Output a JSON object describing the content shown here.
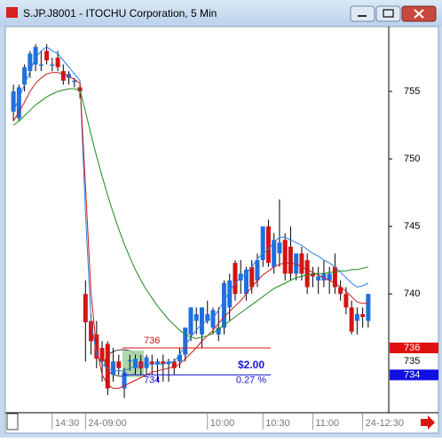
{
  "window": {
    "title": "S.JP.J8001 - ITOCHU Corporation, 5 Min"
  },
  "chart_data": {
    "type": "candlestick",
    "up_color": "#1f6fe0",
    "down_color": "#d41414",
    "categories": [
      null,
      null,
      null,
      null,
      null,
      null,
      null,
      "14:30",
      null,
      null,
      null,
      null,
      null,
      "24-09:00",
      null,
      null,
      null,
      null,
      null,
      null,
      null,
      null,
      null,
      null,
      null,
      null,
      null,
      null,
      null,
      null,
      null,
      null,
      null,
      null,
      null,
      "10:00",
      null,
      null,
      null,
      null,
      null,
      null,
      null,
      null,
      null,
      "10:30",
      null,
      null,
      null,
      null,
      null,
      null,
      null,
      null,
      "11:00",
      null,
      null,
      null,
      null,
      null,
      null,
      null,
      null,
      "24-12:30",
      null
    ],
    "open": [
      753.5,
      753,
      755.5,
      756.5,
      757,
      757,
      758,
      757,
      757.5,
      756.5,
      756,
      755.8,
      755.3,
      740,
      738,
      737,
      736,
      736.3,
      734,
      735,
      733,
      735,
      734.5,
      735,
      734.5,
      735,
      734.8,
      735,
      734.8,
      735,
      735,
      735.5,
      737,
      738,
      737,
      738,
      737.5,
      737,
      737.5,
      739,
      742.3,
      741,
      740,
      742,
      741,
      742.5,
      745,
      742,
      743,
      744,
      743.5,
      741.5,
      743,
      742.5,
      741.5,
      741,
      741,
      741,
      742,
      740.5,
      740,
      739,
      738,
      738.5,
      738
    ],
    "high": [
      755.5,
      755.5,
      757,
      758,
      758.5,
      758,
      758.5,
      757.5,
      758,
      757,
      756.5,
      756,
      755.5,
      741,
      738.5,
      738,
      736.5,
      736.5,
      736,
      735.5,
      734.5,
      735.5,
      735.5,
      735.5,
      735.5,
      735.5,
      735.2,
      735.5,
      735.2,
      735.2,
      736,
      737.5,
      739,
      739,
      739,
      739.5,
      739,
      739,
      741,
      741.5,
      742.5,
      742.5,
      742,
      742.5,
      743,
      745,
      745.5,
      744.5,
      747,
      744.5,
      745,
      743,
      743.5,
      743,
      742,
      742,
      742.5,
      742,
      743,
      741,
      740.5,
      739.5,
      739,
      739,
      740
    ],
    "low": [
      752.8,
      752.8,
      755,
      756,
      756.5,
      756.5,
      757,
      756.5,
      756.5,
      755.5,
      755.5,
      755.3,
      754.5,
      735,
      735.5,
      734.5,
      733.5,
      732.5,
      733.5,
      734,
      732.3,
      734.3,
      734,
      734,
      734,
      734,
      733.5,
      733.5,
      733.5,
      734,
      734.5,
      735,
      736.5,
      737,
      736,
      737.8,
      737,
      736.5,
      737,
      738,
      739.5,
      740,
      739.5,
      740,
      740.5,
      742,
      742,
      741.5,
      742,
      741,
      741,
      741,
      741,
      740,
      740.5,
      740,
      740.5,
      740,
      740,
      739.5,
      738.5,
      737,
      737,
      737.5,
      737.5
    ],
    "close": [
      755,
      755.3,
      756.8,
      757.8,
      758.3,
      757,
      757.3,
      757,
      756.8,
      755.8,
      756.3,
      755.8,
      755,
      737.9,
      736.5,
      735.2,
      735,
      733,
      735,
      734.5,
      734.2,
      735.1,
      735.2,
      734.5,
      735.3,
      734.8,
      735,
      734.8,
      735,
      734.5,
      735.5,
      737.5,
      739,
      738.5,
      739,
      738.5,
      738.8,
      737.5,
      740.8,
      741,
      740,
      741.5,
      741.8,
      740.5,
      742.5,
      745,
      742.3,
      744,
      743.8,
      741.5,
      741.5,
      743,
      741.5,
      740.5,
      741.3,
      741.3,
      741.5,
      741.5,
      740.5,
      740,
      739,
      737.2,
      738.5,
      738.3,
      740
    ],
    "series": [
      {
        "color": "#2a7de1",
        "values": [
          753.5,
          754.5,
          755.5,
          756.5,
          757.5,
          758,
          758.3,
          758,
          757.8,
          757.3,
          756.8,
          756.3,
          755.8,
          746,
          738,
          735.5,
          734.8,
          734.5,
          734.3,
          734.3,
          734.3,
          734.5,
          734.6,
          734.7,
          734.8,
          734.8,
          734.8,
          734.8,
          734.9,
          735,
          735.5,
          736.2,
          736.8,
          737.3,
          737.8,
          738,
          738.2,
          738.8,
          739.5,
          740.2,
          740.8,
          741.2,
          741.5,
          742,
          742.6,
          743,
          743.3,
          743.8,
          744.2,
          744.2,
          744,
          743.8,
          743.6,
          743.3,
          743,
          742.8,
          742.5,
          742.3,
          742,
          741.6,
          741.2,
          740.8,
          740.5,
          740.6,
          740.8
        ]
      },
      {
        "color": "#c81818",
        "values": [
          752.8,
          753.5,
          754.2,
          755,
          755.6,
          756,
          756.3,
          756.4,
          756.4,
          756.3,
          756.1,
          755.9,
          755.6,
          748,
          740,
          736,
          734,
          733.3,
          733,
          733,
          733.2,
          733.4,
          733.6,
          733.8,
          734,
          734.2,
          734.3,
          734.4,
          734.5,
          734.6,
          734.8,
          735.2,
          735.6,
          736,
          736.5,
          736.9,
          737.3,
          737.8,
          738.3,
          738.7,
          739.1,
          739.5,
          740,
          740.5,
          741,
          741.4,
          741.7,
          742,
          742.2,
          742.3,
          742.3,
          742.2,
          742,
          741.8,
          741.6,
          741.4,
          741.2,
          741,
          740.8,
          740.5,
          740.2,
          739.8,
          739.4,
          739.3,
          739.3
        ]
      },
      {
        "color": "#1a8a1a",
        "values": [
          752.5,
          752.8,
          753.2,
          753.6,
          754,
          754.3,
          754.6,
          754.8,
          755,
          755.1,
          755.2,
          755.2,
          755.1,
          753.5,
          751.8,
          750.2,
          748.7,
          747.3,
          746,
          744.8,
          743.7,
          742.7,
          741.8,
          741,
          740.3,
          739.7,
          739.1,
          738.6,
          738.1,
          737.7,
          737.3,
          737,
          736.8,
          736.7,
          736.8,
          736.9,
          737.1,
          737.4,
          737.7,
          738,
          738.3,
          738.6,
          738.9,
          739.2,
          739.5,
          739.8,
          740.1,
          740.4,
          740.6,
          740.8,
          741,
          741.2,
          741.3,
          741.4,
          741.5,
          741.5,
          741.5,
          741.6,
          741.6,
          741.7,
          741.7,
          741.8,
          741.8,
          741.9,
          742
        ]
      }
    ],
    "ylim": [
      731.2,
      759.8
    ],
    "yticks": [
      740,
      745,
      750,
      755
    ],
    "measure": {
      "high": 736,
      "low": 734,
      "high_color": "#d41414",
      "low_color": "#1414d4",
      "change_label": "$2.00",
      "percent_label": "0.27 %"
    },
    "price_markers": [
      {
        "value": 736,
        "color": "#e01010"
      },
      {
        "value": 735,
        "color": null
      },
      {
        "value": 734,
        "color": "#1010e0"
      }
    ]
  }
}
